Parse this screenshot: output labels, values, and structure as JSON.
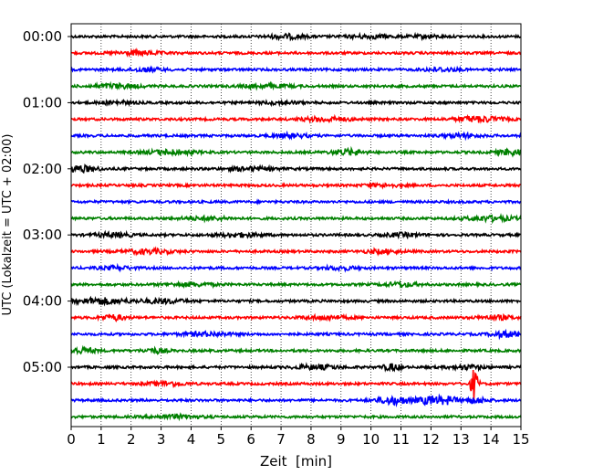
{
  "chart_data": {
    "type": "line",
    "title": "",
    "xlabel": "Zeit  [min]",
    "ylabel": "UTC (Lokalzeit = UTC + 02:00)",
    "xlim": [
      0,
      15
    ],
    "x_ticks": [
      0,
      1,
      2,
      3,
      4,
      5,
      6,
      7,
      8,
      9,
      10,
      11,
      12,
      13,
      14,
      15
    ],
    "vertical_grid": "dotted",
    "y_tick_labels": [
      {
        "label": "00:00",
        "trace": 0
      },
      {
        "label": "01:00",
        "trace": 4
      },
      {
        "label": "02:00",
        "trace": 8
      },
      {
        "label": "03:00",
        "trace": 12
      },
      {
        "label": "04:00",
        "trace": 16
      },
      {
        "label": "05:00",
        "trace": 20
      }
    ],
    "trace_interval_minutes": 15,
    "trace_count": 24,
    "color_cycle": [
      "#000000",
      "#ff0000",
      "#0000ff",
      "#008000"
    ],
    "traces": [
      {
        "start": "00:00",
        "color": "#000000",
        "bursts": [
          [
            7.2,
            0.6,
            1.6
          ],
          [
            10.0,
            0.8,
            1.2
          ],
          [
            11.8,
            0.5,
            1.0
          ]
        ]
      },
      {
        "start": "00:15",
        "color": "#ff0000",
        "bursts": [
          [
            2.2,
            0.8,
            1.4
          ]
        ]
      },
      {
        "start": "00:30",
        "color": "#0000ff",
        "bursts": [
          [
            2.5,
            0.6,
            1.3
          ],
          [
            12.3,
            0.6,
            1.3
          ]
        ]
      },
      {
        "start": "00:45",
        "color": "#008000",
        "bursts": [
          [
            1.5,
            0.8,
            1.5
          ],
          [
            6.5,
            0.8,
            1.3
          ]
        ]
      },
      {
        "start": "01:00",
        "color": "#000000",
        "bursts": [
          [
            1.5,
            0.6,
            1.1
          ],
          [
            7.0,
            0.6,
            1.1
          ]
        ]
      },
      {
        "start": "01:15",
        "color": "#ff0000",
        "bursts": [
          [
            8.5,
            0.8,
            1.6
          ],
          [
            13.6,
            0.8,
            2.2
          ]
        ]
      },
      {
        "start": "01:30",
        "color": "#0000ff",
        "bursts": [
          [
            7.3,
            0.6,
            1.4
          ],
          [
            13.0,
            0.6,
            1.4
          ]
        ]
      },
      {
        "start": "01:45",
        "color": "#008000",
        "bursts": [
          [
            3.3,
            0.8,
            1.8
          ],
          [
            9.2,
            0.5,
            2.2
          ],
          [
            14.7,
            0.5,
            2.2
          ]
        ]
      },
      {
        "start": "02:00",
        "color": "#000000",
        "bursts": [
          [
            0.3,
            0.6,
            2.4
          ],
          [
            6.0,
            0.8,
            1.3
          ]
        ]
      },
      {
        "start": "02:15",
        "color": "#ff0000",
        "bursts": [
          [
            10.4,
            0.6,
            1.0
          ]
        ]
      },
      {
        "start": "02:30",
        "color": "#0000ff",
        "bursts": []
      },
      {
        "start": "02:45",
        "color": "#008000",
        "bursts": [
          [
            4.5,
            0.8,
            1.2
          ],
          [
            14.0,
            0.8,
            1.8
          ]
        ]
      },
      {
        "start": "03:00",
        "color": "#000000",
        "bursts": [
          [
            1.4,
            0.6,
            1.6
          ],
          [
            5.6,
            0.8,
            1.4
          ],
          [
            11.0,
            0.6,
            1.3
          ]
        ]
      },
      {
        "start": "03:15",
        "color": "#ff0000",
        "bursts": [
          [
            2.6,
            0.8,
            1.6
          ],
          [
            10.4,
            0.6,
            1.4
          ]
        ]
      },
      {
        "start": "03:30",
        "color": "#0000ff",
        "bursts": [
          [
            1.5,
            0.6,
            1.2
          ],
          [
            9.0,
            0.6,
            1.2
          ]
        ]
      },
      {
        "start": "03:45",
        "color": "#008000",
        "bursts": [
          [
            4.0,
            0.8,
            1.2
          ],
          [
            11.0,
            0.6,
            1.4
          ]
        ]
      },
      {
        "start": "04:00",
        "color": "#000000",
        "bursts": [
          [
            1.0,
            0.8,
            2.4
          ],
          [
            3.0,
            0.8,
            1.6
          ]
        ]
      },
      {
        "start": "04:15",
        "color": "#ff0000",
        "bursts": [
          [
            1.4,
            0.4,
            2.2
          ],
          [
            8.5,
            0.8,
            1.3
          ],
          [
            14.2,
            0.6,
            1.5
          ]
        ]
      },
      {
        "start": "04:30",
        "color": "#0000ff",
        "bursts": [
          [
            4.5,
            0.8,
            1.5
          ],
          [
            14.5,
            0.5,
            2.2
          ]
        ]
      },
      {
        "start": "04:45",
        "color": "#008000",
        "bursts": [
          [
            0.3,
            0.5,
            2.2
          ],
          [
            2.8,
            0.4,
            1.8
          ]
        ]
      },
      {
        "start": "05:00",
        "color": "#000000",
        "bursts": [
          [
            8.2,
            0.8,
            1.5
          ],
          [
            10.7,
            0.3,
            2.5
          ],
          [
            13.2,
            0.6,
            1.5
          ]
        ]
      },
      {
        "start": "05:15",
        "color": "#ff0000",
        "bursts": [
          [
            3.2,
            0.6,
            1.6
          ],
          [
            13.45,
            0.12,
            13.0
          ]
        ]
      },
      {
        "start": "05:30",
        "color": "#0000ff",
        "bursts": [
          [
            10.8,
            0.6,
            3.0
          ],
          [
            12.0,
            0.4,
            3.2
          ],
          [
            12.6,
            0.3,
            2.6
          ],
          [
            13.5,
            0.4,
            2.0
          ]
        ]
      },
      {
        "start": "05:45",
        "color": "#008000",
        "bursts": [
          [
            3.5,
            0.8,
            1.2
          ]
        ]
      }
    ]
  }
}
